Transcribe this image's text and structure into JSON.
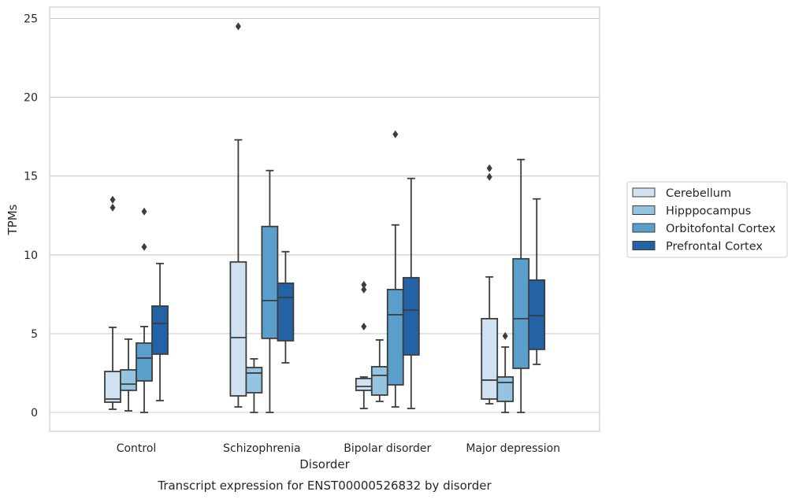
{
  "chart_data": {
    "type": "boxplot",
    "caption": "Transcript expression for ENST00000526832 by disorder",
    "xlabel": "Disorder",
    "ylabel": "TPMs",
    "ylim": [
      -1.2,
      25.8
    ],
    "yticks": [
      0,
      5,
      10,
      15,
      20,
      25
    ],
    "grid": true,
    "legend_position": "right",
    "categories": [
      "Control",
      "Schizophrenia",
      "Bipolar disorder",
      "Major depression"
    ],
    "series": [
      {
        "name": "Cerebellum",
        "color": "#d0e1f2",
        "boxes": [
          {
            "whislo": 0.2,
            "q1": 0.65,
            "med": 0.85,
            "q3": 2.6,
            "whishi": 5.4,
            "fliers": [
              13.0,
              13.5
            ]
          },
          {
            "whislo": 0.35,
            "q1": 1.05,
            "med": 4.75,
            "q3": 9.55,
            "whishi": 17.3,
            "fliers": [
              24.5
            ]
          },
          {
            "whislo": 0.25,
            "q1": 1.4,
            "med": 1.65,
            "q3": 2.15,
            "whishi": 2.25,
            "fliers": [
              5.45,
              7.8,
              8.1
            ]
          },
          {
            "whislo": 0.55,
            "q1": 0.85,
            "med": 2.05,
            "q3": 5.95,
            "whishi": 8.6,
            "fliers": [
              14.95,
              15.5
            ]
          }
        ]
      },
      {
        "name": "Hipppocampus",
        "color": "#94c4df",
        "boxes": [
          {
            "whislo": 0.1,
            "q1": 1.4,
            "med": 1.8,
            "q3": 2.7,
            "whishi": 4.65,
            "fliers": []
          },
          {
            "whislo": 0.0,
            "q1": 1.25,
            "med": 2.5,
            "q3": 2.85,
            "whishi": 3.4,
            "fliers": []
          },
          {
            "whislo": 0.7,
            "q1": 1.1,
            "med": 2.35,
            "q3": 2.9,
            "whishi": 4.6,
            "fliers": []
          },
          {
            "whislo": 0.0,
            "q1": 0.7,
            "med": 1.9,
            "q3": 2.25,
            "whishi": 4.15,
            "fliers": [
              4.85
            ]
          }
        ]
      },
      {
        "name": "Orbitofontal Cortex",
        "color": "#5a9fcb",
        "boxes": [
          {
            "whislo": 0.0,
            "q1": 2.0,
            "med": 3.45,
            "q3": 4.4,
            "whishi": 5.45,
            "fliers": [
              10.5,
              12.75
            ]
          },
          {
            "whislo": 0.0,
            "q1": 4.7,
            "med": 7.1,
            "q3": 11.8,
            "whishi": 15.35,
            "fliers": []
          },
          {
            "whislo": 0.35,
            "q1": 1.75,
            "med": 6.2,
            "q3": 7.8,
            "whishi": 11.9,
            "fliers": [
              17.65
            ]
          },
          {
            "whislo": 0.0,
            "q1": 2.8,
            "med": 5.95,
            "q3": 9.75,
            "whishi": 16.05,
            "fliers": []
          }
        ]
      },
      {
        "name": "Prefrontal Cortex",
        "color": "#2462a6",
        "boxes": [
          {
            "whislo": 0.75,
            "q1": 3.7,
            "med": 5.65,
            "q3": 6.75,
            "whishi": 9.45,
            "fliers": []
          },
          {
            "whislo": 3.15,
            "q1": 4.55,
            "med": 7.3,
            "q3": 8.2,
            "whishi": 10.2,
            "fliers": []
          },
          {
            "whislo": 0.25,
            "q1": 3.65,
            "med": 6.5,
            "q3": 8.55,
            "whishi": 14.85,
            "fliers": []
          },
          {
            "whislo": 3.05,
            "q1": 4.0,
            "med": 6.15,
            "q3": 8.4,
            "whishi": 13.55,
            "fliers": []
          }
        ]
      }
    ]
  }
}
